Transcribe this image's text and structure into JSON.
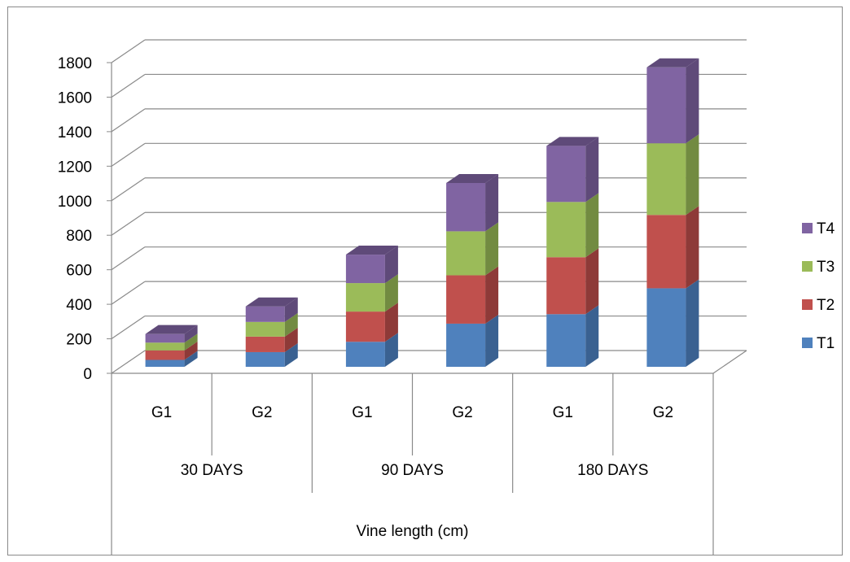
{
  "chart_data": {
    "type": "bar",
    "subtype": "stacked-3d",
    "title": "",
    "xlabel": "Vine length (cm)",
    "ylabel": "",
    "ylim": [
      0,
      1800
    ],
    "yticks": [
      0,
      200,
      400,
      600,
      800,
      1000,
      1200,
      1400,
      1600,
      1800
    ],
    "grid": true,
    "legend_position": "right",
    "groups": [
      {
        "label": "30 DAYS",
        "categories": [
          "G1",
          "G2"
        ]
      },
      {
        "label": "90 DAYS",
        "categories": [
          "G1",
          "G2"
        ]
      },
      {
        "label": "180 DAYS",
        "categories": [
          "G1",
          "G2"
        ]
      }
    ],
    "categories": [
      "G1",
      "G2",
      "G1",
      "G2",
      "G1",
      "G2"
    ],
    "series": [
      {
        "name": "T1",
        "color": "#4F81BD",
        "side": "#3A6191",
        "top": "#6C97CC",
        "values": [
          40,
          85,
          145,
          250,
          305,
          455
        ]
      },
      {
        "name": "T2",
        "color": "#C0504D",
        "side": "#8E3A38",
        "top": "#D06F6C",
        "values": [
          55,
          90,
          175,
          280,
          330,
          425
        ]
      },
      {
        "name": "T3",
        "color": "#9BBB59",
        "side": "#728B41",
        "top": "#B0CC76",
        "values": [
          45,
          85,
          165,
          255,
          320,
          415
        ]
      },
      {
        "name": "T4",
        "color": "#8064A2",
        "side": "#5F4A79",
        "top": "#9A82B8",
        "values": [
          50,
          90,
          165,
          280,
          325,
          440
        ]
      }
    ]
  }
}
